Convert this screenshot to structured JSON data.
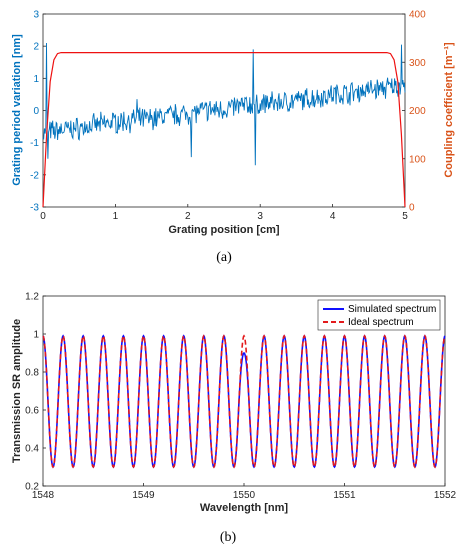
{
  "colors": {
    "period": "#0072bd",
    "coupling": "#d95319",
    "coupling_line": "#ee1111",
    "simulated": "#1010ff",
    "ideal": "#e31a1c",
    "axis": "#262626"
  },
  "chart_data": [
    {
      "type": "line",
      "caption": "(a)",
      "xlabel": "Grating position [cm]",
      "ylabel_left": "Grating period variation [nm]",
      "ylabel_right": "Coupling coefficient [m⁻¹]",
      "xlim": [
        0,
        5
      ],
      "ylim_left": [
        -3,
        3
      ],
      "ylim_right": [
        0,
        400
      ],
      "xticks": [
        "0",
        "1",
        "2",
        "3",
        "4",
        "5"
      ],
      "yticks_left": [
        "-3",
        "-2",
        "-1",
        "0",
        "1",
        "2",
        "3"
      ],
      "yticks_right": [
        "0",
        "100",
        "200",
        "300",
        "400"
      ],
      "grid": false,
      "series": [
        {
          "axis": "left",
          "style": "noisy trace rising from about -0.7 to about 0.8",
          "x": [
            0,
            0.25,
            0.5,
            0.75,
            1.0,
            1.25,
            1.5,
            1.75,
            2.0,
            2.25,
            2.5,
            2.75,
            3.0,
            3.25,
            3.5,
            3.75,
            4.0,
            4.25,
            4.5,
            4.75,
            5.0
          ],
          "y": [
            -0.7,
            -0.6,
            -0.55,
            -0.45,
            -0.35,
            -0.3,
            -0.25,
            -0.15,
            -0.1,
            0.0,
            0.05,
            0.15,
            0.2,
            0.25,
            0.3,
            0.4,
            0.5,
            0.55,
            0.65,
            0.7,
            0.8
          ],
          "spikes": [
            {
              "x": 0.05,
              "y": 2.1
            },
            {
              "x": 0.07,
              "y": -1.5
            },
            {
              "x": 1.3,
              "y": 0.35
            },
            {
              "x": 2.05,
              "y": -1.45
            },
            {
              "x": 2.9,
              "y": 1.9
            },
            {
              "x": 2.93,
              "y": -1.7
            },
            {
              "x": 4.95,
              "y": 2.05
            }
          ]
        },
        {
          "axis": "right",
          "style": "trapezoid apodization profile",
          "x": [
            0,
            0.05,
            0.1,
            0.15,
            0.2,
            0.25,
            4.75,
            4.8,
            4.85,
            4.9,
            4.95,
            5.0
          ],
          "y": [
            0,
            150,
            260,
            305,
            318,
            320,
            320,
            318,
            305,
            260,
            150,
            0
          ]
        }
      ]
    },
    {
      "type": "line",
      "caption": "(b)",
      "xlabel": "Wavelength [nm]",
      "ylabel": "Transmission SR amplitude",
      "xlim": [
        1548,
        1552
      ],
      "ylim": [
        0.2,
        1.2
      ],
      "xticks": [
        "1548",
        "1549",
        "1550",
        "1551",
        "1552"
      ],
      "yticks": [
        "0.2",
        "0.4",
        "0.6",
        "0.8",
        "1",
        "1.2"
      ],
      "grid": false,
      "legend_position": "top-right",
      "periodic": {
        "start": 1548.0,
        "period": 0.2,
        "min": 0.3,
        "max": 0.99,
        "count": 20
      },
      "series": [
        {
          "name": "Simulated spectrum",
          "style": "solid",
          "dip_at_1550": 0.9
        },
        {
          "name": "Ideal spectrum",
          "style": "dashed"
        }
      ]
    }
  ]
}
